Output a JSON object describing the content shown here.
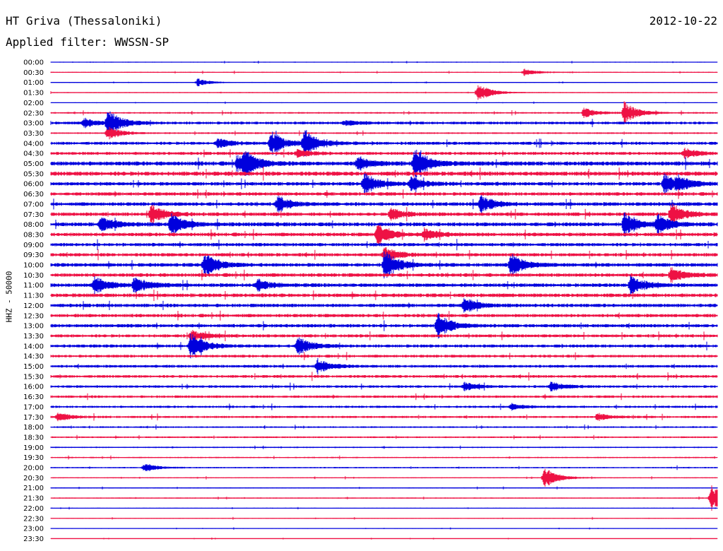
{
  "header": {
    "station": "HT Griva (Thessaloniki)",
    "date": "2012-10-22",
    "filter": "Applied filter: WWSSN-SP"
  },
  "chart_data": {
    "type": "line",
    "title": "HT Griva (Thessaloniki)",
    "subtitle": "Applied filter: WWSSN-SP",
    "date": "2012-10-22",
    "ylabel": "HHZ - 50000",
    "row_labels": [
      "00:00",
      "00:30",
      "01:00",
      "01:30",
      "02:00",
      "02:30",
      "03:00",
      "03:30",
      "04:00",
      "04:30",
      "05:00",
      "05:30",
      "06:00",
      "06:30",
      "07:00",
      "07:30",
      "08:00",
      "08:30",
      "09:00",
      "09:30",
      "10:00",
      "10:30",
      "11:00",
      "11:30",
      "12:00",
      "12:30",
      "13:00",
      "13:30",
      "14:00",
      "14:30",
      "15:00",
      "15:30",
      "16:00",
      "16:30",
      "17:00",
      "17:30",
      "18:00",
      "18:30",
      "19:00",
      "19:30",
      "20:00",
      "20:30",
      "21:00",
      "21:30",
      "22:00",
      "22:30",
      "23:00",
      "23:30"
    ],
    "row_colors": [
      "#0000dd",
      "#ee1144"
    ],
    "noise_level": [
      0.6,
      0.8,
      0.5,
      0.7,
      0.5,
      1.2,
      2.0,
      1.2,
      2.2,
      2.2,
      3.0,
      3.0,
      2.5,
      2.5,
      2.6,
      2.6,
      2.8,
      2.6,
      2.4,
      2.4,
      2.6,
      2.6,
      2.6,
      2.6,
      2.5,
      2.4,
      2.4,
      2.2,
      2.2,
      2.0,
      2.0,
      2.0,
      1.8,
      1.8,
      1.6,
      1.6,
      1.2,
      1.2,
      1.0,
      1.0,
      1.0,
      0.8,
      0.8,
      0.8,
      0.6,
      0.6,
      0.5,
      0.5
    ],
    "events": [
      {
        "row": 1,
        "t": 0.71,
        "amp": 5
      },
      {
        "row": 2,
        "t": 0.22,
        "amp": 6
      },
      {
        "row": 3,
        "t": 0.64,
        "amp": 14
      },
      {
        "row": 5,
        "t": 0.8,
        "amp": 7
      },
      {
        "row": 5,
        "t": 0.86,
        "amp": 16
      },
      {
        "row": 6,
        "t": 0.05,
        "amp": 7
      },
      {
        "row": 6,
        "t": 0.085,
        "amp": 20
      },
      {
        "row": 6,
        "t": 0.44,
        "amp": 4
      },
      {
        "row": 7,
        "t": 0.085,
        "amp": 10
      },
      {
        "row": 8,
        "t": 0.25,
        "amp": 7
      },
      {
        "row": 8,
        "t": 0.33,
        "amp": 18
      },
      {
        "row": 8,
        "t": 0.38,
        "amp": 20
      },
      {
        "row": 9,
        "t": 0.37,
        "amp": 6
      },
      {
        "row": 9,
        "t": 0.95,
        "amp": 7
      },
      {
        "row": 10,
        "t": 0.28,
        "amp": 12
      },
      {
        "row": 10,
        "t": 0.29,
        "amp": 14
      },
      {
        "row": 10,
        "t": 0.46,
        "amp": 10
      },
      {
        "row": 10,
        "t": 0.545,
        "amp": 24
      },
      {
        "row": 12,
        "t": 0.47,
        "amp": 16
      },
      {
        "row": 12,
        "t": 0.54,
        "amp": 10
      },
      {
        "row": 12,
        "t": 0.92,
        "amp": 14
      },
      {
        "row": 12,
        "t": 0.94,
        "amp": 10
      },
      {
        "row": 14,
        "t": 0.34,
        "amp": 12
      },
      {
        "row": 14,
        "t": 0.645,
        "amp": 12
      },
      {
        "row": 15,
        "t": 0.15,
        "amp": 14
      },
      {
        "row": 15,
        "t": 0.51,
        "amp": 8
      },
      {
        "row": 15,
        "t": 0.93,
        "amp": 16
      },
      {
        "row": 16,
        "t": 0.075,
        "amp": 12
      },
      {
        "row": 16,
        "t": 0.18,
        "amp": 16
      },
      {
        "row": 16,
        "t": 0.86,
        "amp": 18
      },
      {
        "row": 16,
        "t": 0.91,
        "amp": 14
      },
      {
        "row": 17,
        "t": 0.49,
        "amp": 16
      },
      {
        "row": 17,
        "t": 0.56,
        "amp": 8
      },
      {
        "row": 19,
        "t": 0.5,
        "amp": 12
      },
      {
        "row": 20,
        "t": 0.23,
        "amp": 18
      },
      {
        "row": 20,
        "t": 0.5,
        "amp": 22
      },
      {
        "row": 20,
        "t": 0.69,
        "amp": 16
      },
      {
        "row": 21,
        "t": 0.93,
        "amp": 10
      },
      {
        "row": 22,
        "t": 0.065,
        "amp": 12
      },
      {
        "row": 22,
        "t": 0.125,
        "amp": 12
      },
      {
        "row": 22,
        "t": 0.31,
        "amp": 8
      },
      {
        "row": 22,
        "t": 0.87,
        "amp": 14
      },
      {
        "row": 24,
        "t": 0.62,
        "amp": 12
      },
      {
        "row": 26,
        "t": 0.58,
        "amp": 18
      },
      {
        "row": 27,
        "t": 0.21,
        "amp": 8
      },
      {
        "row": 28,
        "t": 0.21,
        "amp": 20
      },
      {
        "row": 28,
        "t": 0.37,
        "amp": 14
      },
      {
        "row": 30,
        "t": 0.4,
        "amp": 10
      },
      {
        "row": 32,
        "t": 0.62,
        "amp": 6
      },
      {
        "row": 32,
        "t": 0.75,
        "amp": 6
      },
      {
        "row": 35,
        "t": 0.01,
        "amp": 6
      },
      {
        "row": 35,
        "t": 0.82,
        "amp": 6
      },
      {
        "row": 34,
        "t": 0.69,
        "amp": 5
      },
      {
        "row": 40,
        "t": 0.14,
        "amp": 6
      },
      {
        "row": 41,
        "t": 0.74,
        "amp": 16
      },
      {
        "row": 43,
        "t": 0.99,
        "amp": 20
      }
    ]
  }
}
